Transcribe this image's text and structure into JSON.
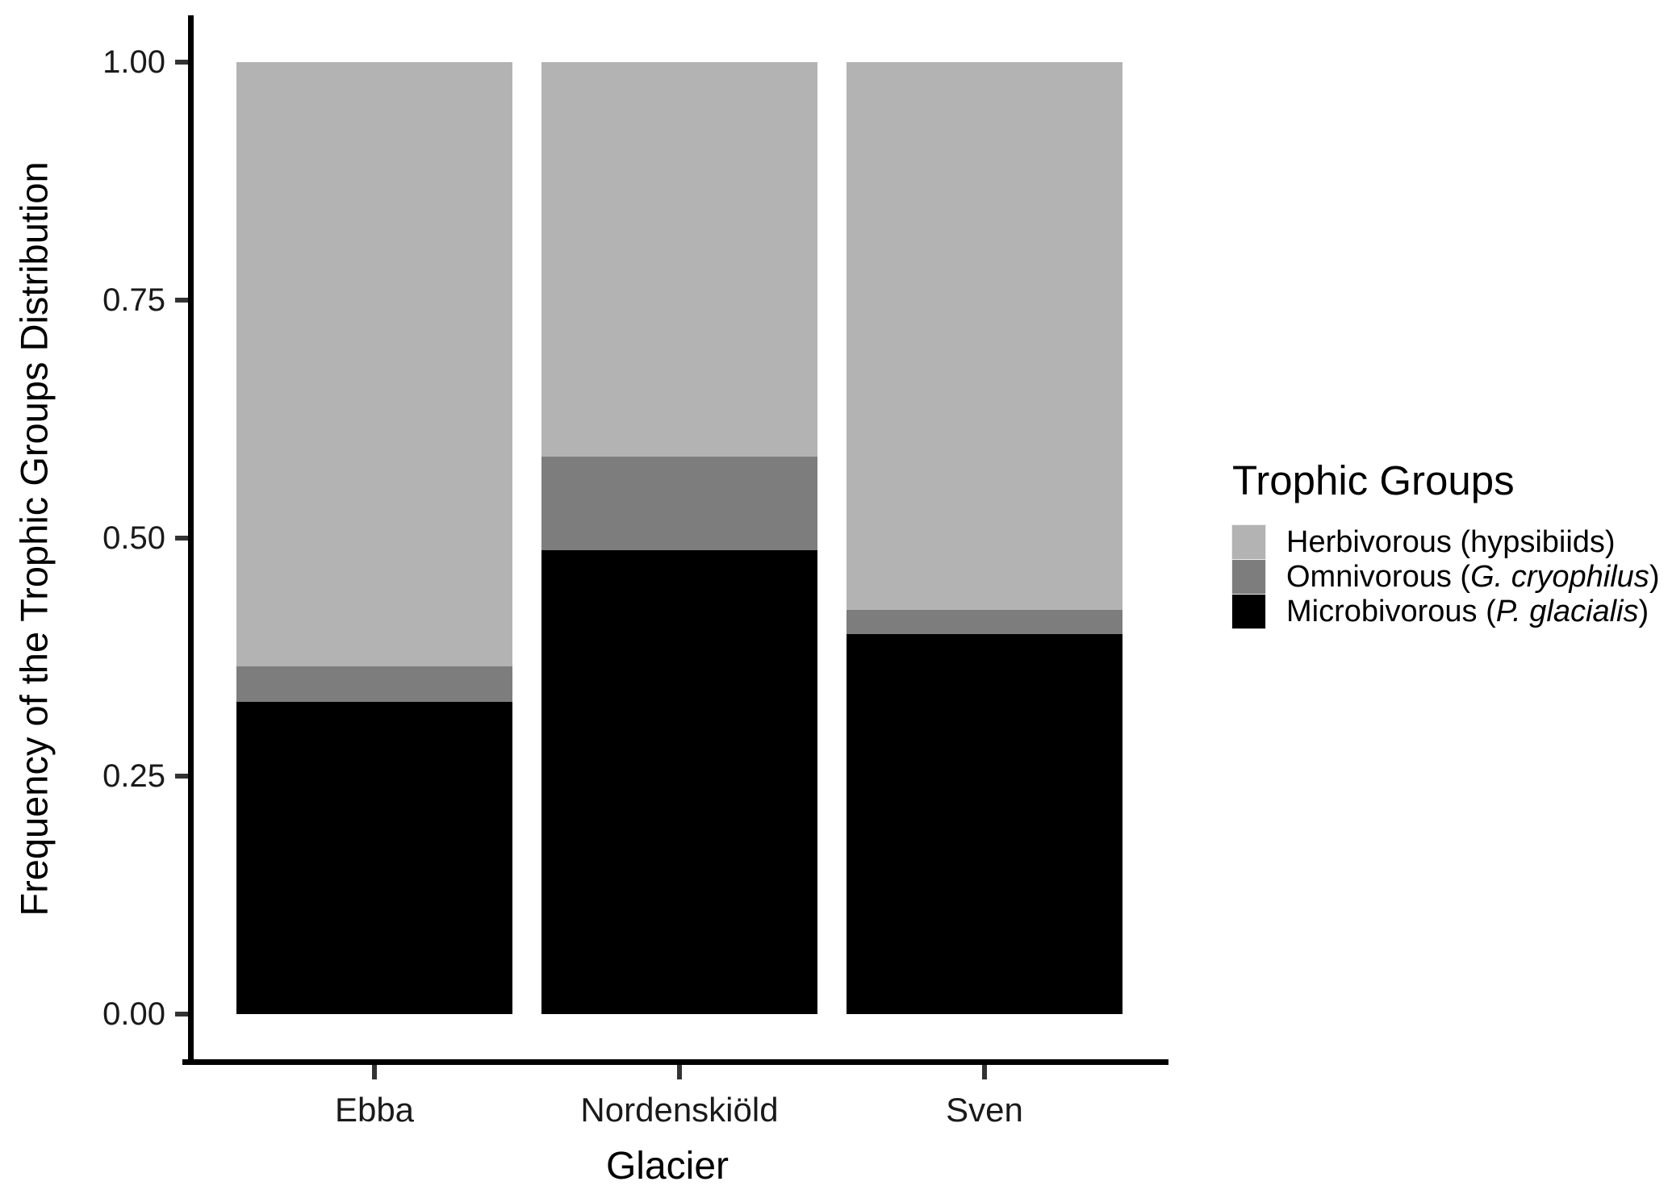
{
  "chart_data": {
    "type": "bar",
    "subtype": "stacked-100pct",
    "title": "",
    "xlabel": "Glacier",
    "ylabel": "Frequency of the Trophic Groups Distribution",
    "categories": [
      "Ebba",
      "Nordenskiöld",
      "Sven"
    ],
    "series": [
      {
        "name": "Herbivorous (hypsibiids)",
        "color": "#b3b3b3",
        "values": [
          0.635,
          0.414,
          0.575
        ]
      },
      {
        "name": "Omnivorous (G. cryophilus)",
        "color": "#7d7d7d",
        "values": [
          0.037,
          0.099,
          0.026
        ]
      },
      {
        "name": "Microbivorous (P. glacialis)",
        "color": "#000000",
        "values": [
          0.328,
          0.487,
          0.399
        ]
      }
    ],
    "stack_order_bottom_to_top": [
      "Microbivorous (P. glacialis)",
      "Omnivorous (G. cryophilus)",
      "Herbivorous (hypsibiids)"
    ],
    "ylim": [
      0,
      1
    ],
    "yticks": [
      {
        "label": "0.00",
        "value": 0.0
      },
      {
        "label": "0.25",
        "value": 0.25
      },
      {
        "label": "0.50",
        "value": 0.5
      },
      {
        "label": "0.75",
        "value": 0.75
      },
      {
        "label": "1.00",
        "value": 1.0
      }
    ],
    "grid": "off",
    "legend_position": "right"
  },
  "legend": {
    "title": "Trophic Groups",
    "items": [
      {
        "pre": "Herbivorous (hypsibiids)",
        "italic": "",
        "post": ""
      },
      {
        "pre": "Omnivorous (",
        "italic": "G. cryophilus",
        "post": ")"
      },
      {
        "pre": "Microbivorous (",
        "italic": "P. glacialis",
        "post": ")"
      }
    ]
  },
  "colors": {
    "axis": "#000000",
    "tick": "#333333",
    "text": "#1a1a1a",
    "background": "#ffffff"
  }
}
